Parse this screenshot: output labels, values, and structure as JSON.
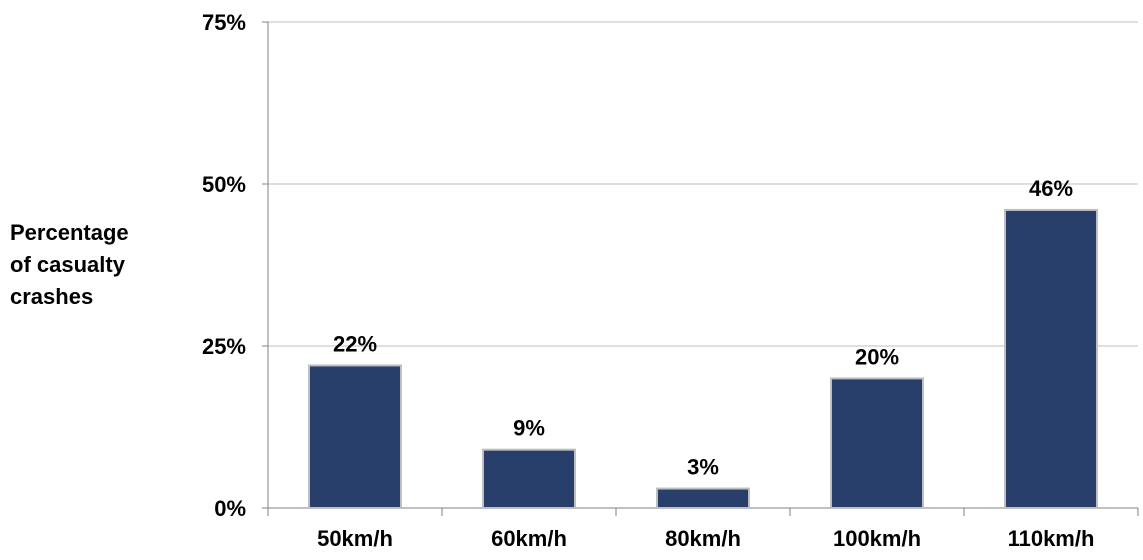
{
  "chart_data": {
    "type": "bar",
    "title": "",
    "xlabel": "",
    "ylabel": "Percentage of casualty crashes",
    "ylabel_lines": [
      "Percentage",
      "of casualty",
      "crashes"
    ],
    "categories": [
      "50km/h",
      "60km/h",
      "80km/h",
      "100km/h",
      "110km/h"
    ],
    "values": [
      22,
      9,
      3,
      20,
      46
    ],
    "data_labels": [
      "22%",
      "9%",
      "3%",
      "20%",
      "46%"
    ],
    "ylim": [
      0,
      75
    ],
    "yticks": [
      0,
      25,
      50,
      75
    ],
    "ytick_labels": [
      "0%",
      "25%",
      "50%",
      "75%"
    ],
    "grid": true,
    "legend": "none",
    "colors": {
      "bar_fill": "#283F6C",
      "bar_stroke": "#BFBFBF",
      "grid": "#BFBFBF",
      "axis": "#808080",
      "text": "#000000"
    }
  }
}
